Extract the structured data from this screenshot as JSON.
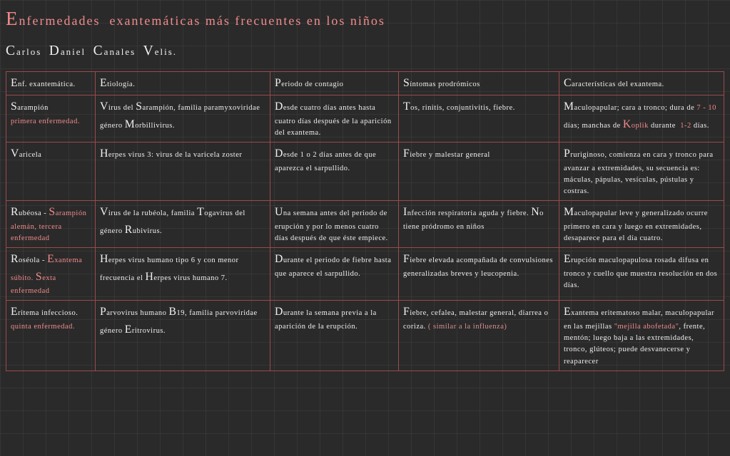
{
  "title_html": "<span class='cap'>E</span>nfermedades &nbsp;exantemáticas más frecuentes en los niños",
  "author_html": "<span class='cap'>C</span>arlos &nbsp;<span class='cap'>D</span>aniel &nbsp;<span class='cap'>C</span>anales &nbsp;<span class='cap'>V</span>elis.",
  "colors": {
    "background": "#2a2a2a",
    "grid": "rgba(80,80,80,0.3)",
    "text": "#f0f0f0",
    "accent": "#f28b8b",
    "border": "#9b4a4a"
  },
  "columns": [
    "Enf. exantemática.",
    "Etiología.",
    "Periodo de contagio",
    "Síntomas prodrómicos",
    "Características del exantema."
  ],
  "header_html": [
    "<span class='cap'>E</span>nf. exantemática.",
    "<span class='cap'>E</span>tiología.",
    "<span class='cap'>P</span>eriodo de contagio",
    "<span class='cap'>S</span>íntomas prodrómicos",
    "<span class='cap'>C</span>aracterísticas del exantema."
  ],
  "rows": [
    {
      "cells_html": [
        "<span class='cap'>S</span>arampión<br><span class='hl'>primera enfermedad.</span>",
        "<span class='cap'>V</span>irus del <span class='cap'>S</span>arampión, familia paramyxoviridae género <span class='cap'>M</span>orbillivirus.",
        "<span class='cap'>D</span>esde cuatro días antes hasta cuatro días después de la aparición del exantema.",
        "<span class='cap'>T</span>os, rinitis, conjuntivitis, fiebre.",
        "<span class='cap'>M</span>aculopapular; cara a tronco; dura de <span class='hl'>7 - 10</span> días; manchas de <span class='hl'><span class='cap'>K</span>oplik</span> durante &nbsp;<span class='hl'>1-2</span> días."
      ]
    },
    {
      "cells_html": [
        "<span class='cap'>V</span>aricela",
        "<span class='cap'>H</span>erpes virus 3: virus de la varicela zoster",
        "<span class='cap'>D</span>esde 1 o 2 días antes de que aparezca el sarpullido.",
        "<span class='cap'>F</span>iebre y malestar general",
        "<span class='cap'>P</span>ruriginoso, comienza en cara y tronco para avanzar a extremidades, su secuencia es: máculas, pápulas, vesículas, pústulas y costras."
      ]
    },
    {
      "cells_html": [
        "<span class='cap'>R</span>ubéosa - <span class='hl'><span class='cap'>S</span>arampión alemán, tercera enfermedad</span>",
        "<span class='cap'>V</span>irus de la rubéola, familia <span class='cap'>T</span>ogavirus del género <span class='cap'>R</span>ubivirus.",
        "<span class='cap'>U</span>na semana antes del periodo de erupción y por lo menos cuatro días después de que éste empiece.",
        "<span class='cap'>I</span>nfección respiratoria aguda y fiebre. <span class='cap'>N</span>o tiene pródromo en niños",
        "<span class='cap'>M</span>aculopapular leve y generalizado ocurre primero en cara y luego en extremidades, desaparece para el día cuatro."
      ]
    },
    {
      "cells_html": [
        "<span class='cap'>R</span>oséola - <span class='hl'><span class='cap'>E</span>xantema súbito. <span class='cap'>S</span>exta enfermedad</span>",
        "<span class='cap'>H</span>erpes virus humano tipo 6 y con menor frecuencia el <span class='cap'>H</span>erpes virus humano 7.",
        "<span class='cap'>D</span>urante el periodo de fiebre hasta que aparece el sarpullido.",
        "<span class='cap'>F</span>iebre elevada acompañada de convulsiones generalizadas breves y leucopenia.",
        "<span class='cap'>E</span>rupción maculopapulosa rosada difusa en tronco y cuello que muestra resolución en dos días."
      ]
    },
    {
      "cells_html": [
        "<span class='cap'>E</span>ritema infeccioso. <span class='hl'>quinta enfermedad.</span>",
        "<span class='cap'>P</span>arvovirus humano <span class='cap'>B</span>19, familia parvoviridae género <span class='cap'>E</span>ritrovirus.",
        "<span class='cap'>D</span>urante la semana previa a la aparición de la erupción.",
        "<span class='cap'>F</span>iebre, cefalea, malestar general, diarrea o coriza. <span class='faint'>( similar a la influenza)</span>",
        "<span class='cap'>E</span>xantema eritematoso malar, maculopapular en las mejillas <span class='hl'>\"mejilla abofetada\"</span>, frente, mentón; luego baja a las extremidades, tronco, glúteos; puede desvanecerse y reaparecer"
      ]
    }
  ]
}
